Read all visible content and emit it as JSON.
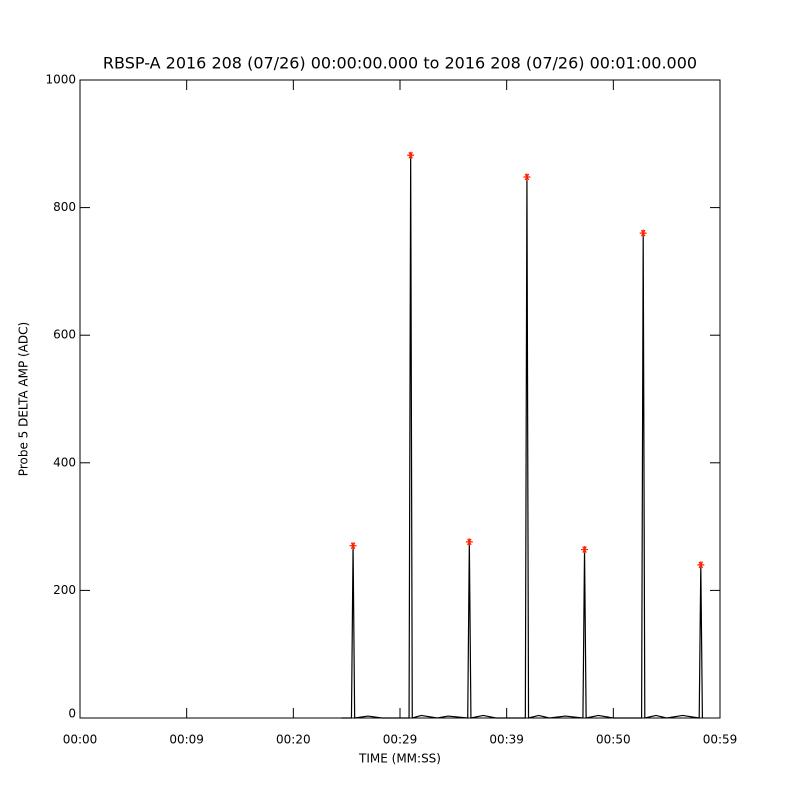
{
  "chart_data": {
    "type": "line",
    "title": "RBSP-A 2016 208 (07/26) 00:00:00.000 to 2016 208 (07/26) 00:01:00.000",
    "x_label": "TIME (MM:SS)",
    "y_label": "Probe 5 DELTA AMP (ADC)",
    "xlim": [
      0,
      60
    ],
    "xticks": [
      {
        "value": 0,
        "label": "00:00"
      },
      {
        "value": 10,
        "label": "00:09"
      },
      {
        "value": 20,
        "label": "00:20"
      },
      {
        "value": 30,
        "label": "00:29"
      },
      {
        "value": 40,
        "label": "00:39"
      },
      {
        "value": 50,
        "label": "00:50"
      },
      {
        "value": 60,
        "label": "00:59"
      }
    ],
    "ylim": [
      0,
      1000
    ],
    "yticks": [
      0,
      200,
      400,
      600,
      800,
      1000
    ],
    "series": [
      {
        "color": "#000000",
        "marker": "none",
        "x": [
          24.5,
          25.45,
          25.6,
          25.75,
          27,
          28.3,
          30.85,
          31.0,
          31.15,
          32,
          33.5,
          34.5,
          36.35,
          36.5,
          36.65,
          37.8,
          39,
          41.75,
          41.9,
          42.05,
          43,
          44,
          45.5,
          47.15,
          47.3,
          47.45,
          48.6,
          50,
          52.65,
          52.8,
          52.95,
          54,
          55,
          56.5,
          58.05,
          58.2,
          58.35
        ],
        "values": [
          0,
          0,
          270,
          0,
          3,
          0,
          0,
          882,
          0,
          4,
          0,
          3,
          0,
          276,
          0,
          4,
          0,
          0,
          848,
          0,
          4,
          0,
          3,
          0,
          264,
          0,
          4,
          0,
          0,
          760,
          0,
          4,
          0,
          4,
          0,
          240,
          0
        ]
      },
      {
        "color": "#ff2200",
        "marker": "asterisk",
        "x": [
          25.6,
          31.0,
          36.5,
          41.9,
          47.3,
          52.8,
          58.2
        ],
        "values": [
          270,
          882,
          276,
          848,
          264,
          760,
          240
        ]
      }
    ]
  }
}
